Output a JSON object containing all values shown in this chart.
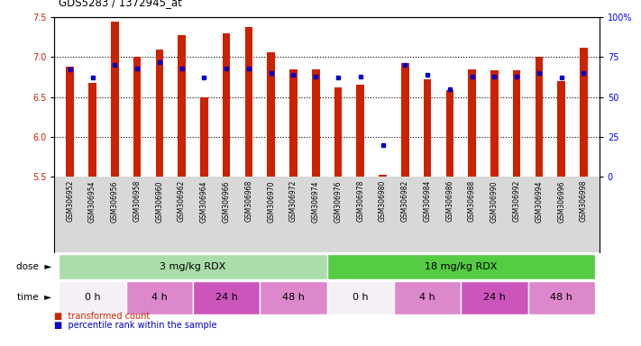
{
  "title": "GDS5283 / 1372945_at",
  "samples": [
    "GSM306952",
    "GSM306954",
    "GSM306956",
    "GSM306958",
    "GSM306960",
    "GSM306962",
    "GSM306964",
    "GSM306966",
    "GSM306968",
    "GSM306970",
    "GSM306972",
    "GSM306974",
    "GSM306976",
    "GSM306978",
    "GSM306980",
    "GSM306982",
    "GSM306984",
    "GSM306986",
    "GSM306988",
    "GSM306990",
    "GSM306992",
    "GSM306994",
    "GSM306996",
    "GSM306998"
  ],
  "transformed_count": [
    6.88,
    6.68,
    7.44,
    7.0,
    7.1,
    7.28,
    6.5,
    7.3,
    7.38,
    7.06,
    6.85,
    6.85,
    6.62,
    6.65,
    5.52,
    6.93,
    6.72,
    6.58,
    6.84,
    6.83,
    6.83,
    7.0,
    6.7,
    7.12
  ],
  "percentile_rank": [
    67,
    62,
    70,
    68,
    72,
    68,
    62,
    68,
    68,
    65,
    64,
    63,
    62,
    63,
    20,
    70,
    64,
    55,
    63,
    63,
    63,
    65,
    62,
    65
  ],
  "ylim_left": [
    5.5,
    7.5
  ],
  "ylim_right": [
    0,
    100
  ],
  "yticks_left": [
    5.5,
    6.0,
    6.5,
    7.0,
    7.5
  ],
  "yticks_right": [
    0,
    25,
    50,
    75,
    100
  ],
  "ytick_labels_right": [
    "0",
    "25",
    "50",
    "75",
    "100%"
  ],
  "bar_color": "#cc2200",
  "dot_color": "#0000cc",
  "bar_bottom": 5.5,
  "dose_groups": [
    {
      "label": "3 mg/kg RDX",
      "start": 0,
      "end": 12,
      "color": "#aaddaa"
    },
    {
      "label": "18 mg/kg RDX",
      "start": 12,
      "end": 24,
      "color": "#55cc44"
    }
  ],
  "time_groups": [
    {
      "label": "0 h",
      "start": 0,
      "end": 3,
      "color": "#f5f0f5"
    },
    {
      "label": "4 h",
      "start": 3,
      "end": 6,
      "color": "#dd88cc"
    },
    {
      "label": "24 h",
      "start": 6,
      "end": 9,
      "color": "#cc55bb"
    },
    {
      "label": "48 h",
      "start": 9,
      "end": 12,
      "color": "#dd88cc"
    },
    {
      "label": "0 h",
      "start": 12,
      "end": 15,
      "color": "#f5f0f5"
    },
    {
      "label": "4 h",
      "start": 15,
      "end": 18,
      "color": "#dd88cc"
    },
    {
      "label": "24 h",
      "start": 18,
      "end": 21,
      "color": "#cc55bb"
    },
    {
      "label": "48 h",
      "start": 21,
      "end": 24,
      "color": "#dd88cc"
    }
  ],
  "legend_red_label": "transformed count",
  "legend_blue_label": "percentile rank within the sample",
  "plot_bg_color": "#ffffff",
  "xticklabel_bg": "#d8d8d8",
  "bar_width": 0.35
}
